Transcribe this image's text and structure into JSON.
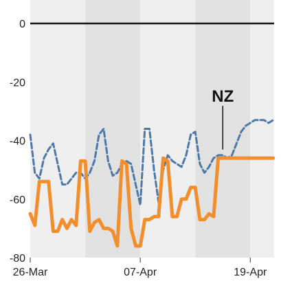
{
  "chart_data": {
    "type": "line",
    "x_tick_labels": [
      "26-Mar",
      "07-Apr",
      "19-Apr"
    ],
    "x_tick_days": [
      0,
      12,
      24
    ],
    "y_ticks": [
      0,
      -20,
      -40,
      -60,
      -80
    ],
    "ylim": [
      -80,
      8
    ],
    "xlim": [
      0,
      26.6
    ],
    "zero_line": true,
    "week_bands": [
      {
        "from": 0,
        "to": 6,
        "shade": "light"
      },
      {
        "from": 6,
        "to": 12,
        "shade": "dark"
      },
      {
        "from": 12,
        "to": 18,
        "shade": "light"
      },
      {
        "from": 18,
        "to": 24,
        "shade": "dark"
      },
      {
        "from": 24,
        "to": 26.6,
        "shade": "light"
      }
    ],
    "colors": {
      "band_light": "#efefef",
      "band_dark": "#e2e2e2",
      "zero_line": "#111111",
      "orange": "#f28e2b",
      "blue": "#4e79a7"
    },
    "series": [
      {
        "name": "NZ",
        "style": "dashed",
        "color": "#4e79a7",
        "x": [
          0,
          0.5,
          1,
          1.5,
          2,
          2.5,
          3,
          3.5,
          4,
          4.5,
          5,
          5.5,
          6,
          6.5,
          7,
          7.5,
          8,
          8.5,
          9,
          9.5,
          10,
          10.5,
          11,
          11.5,
          12,
          12.5,
          13,
          13.5,
          14,
          14.5,
          15,
          15.5,
          16,
          16.5,
          17,
          17.5,
          18,
          18.5,
          19,
          19.5,
          20,
          20.5,
          21,
          21.5,
          22,
          22.5,
          23,
          23.5,
          24,
          24.5,
          25,
          25.5,
          26,
          26.5
        ],
        "y": [
          -38,
          -51,
          -53,
          -46,
          -43,
          -41,
          -48,
          -55,
          -55,
          -53,
          -51,
          -51,
          -53,
          -51,
          -47,
          -38,
          -36,
          -47,
          -52,
          -51,
          -48,
          -47,
          -48,
          -55,
          -62,
          -36,
          -36,
          -50,
          -61,
          -50,
          -45,
          -47,
          -48,
          -49,
          -45,
          -38,
          -37,
          -48,
          -51,
          -49,
          -46,
          -45,
          -45,
          -46,
          -45,
          -41,
          -37,
          -35,
          -34,
          -33,
          -33,
          -33,
          -34,
          -33
        ]
      },
      {
        "name": "",
        "style": "solid",
        "color": "#f28e2b",
        "x": [
          0,
          0.5,
          1,
          1.5,
          2,
          2.5,
          3,
          3.5,
          4,
          4.5,
          5,
          5.5,
          6,
          6.5,
          7,
          7.5,
          8,
          8.5,
          9,
          9.5,
          10,
          10.5,
          11,
          11.5,
          12,
          12.5,
          13,
          13.5,
          14,
          14.5,
          15,
          15.5,
          16,
          16.5,
          17,
          17.5,
          18,
          18.5,
          19,
          19.5,
          20,
          20.5,
          21,
          21.5,
          22,
          22.5,
          23,
          23.5,
          24,
          24.5,
          25,
          25.5,
          26,
          26.5
        ],
        "y": [
          -65,
          -69,
          -54,
          -54,
          -54,
          -71,
          -71,
          -67,
          -70,
          -67,
          -69,
          -47,
          -47,
          -71,
          -68,
          -67,
          -70,
          -70,
          -71,
          -76,
          -47,
          -48,
          -70,
          -76,
          -76,
          -67,
          -67,
          -66,
          -66,
          -46,
          -47,
          -66,
          -66,
          -60,
          -60,
          -56,
          -56,
          -67,
          -67,
          -65,
          -66,
          -46,
          -46,
          -46,
          -46,
          -46,
          -46,
          -46,
          -46,
          -46,
          -46,
          -46,
          -46,
          -46
        ]
      }
    ],
    "annotations": [
      {
        "text": "NZ",
        "series": "NZ",
        "day": 21,
        "value": -44
      }
    ]
  }
}
